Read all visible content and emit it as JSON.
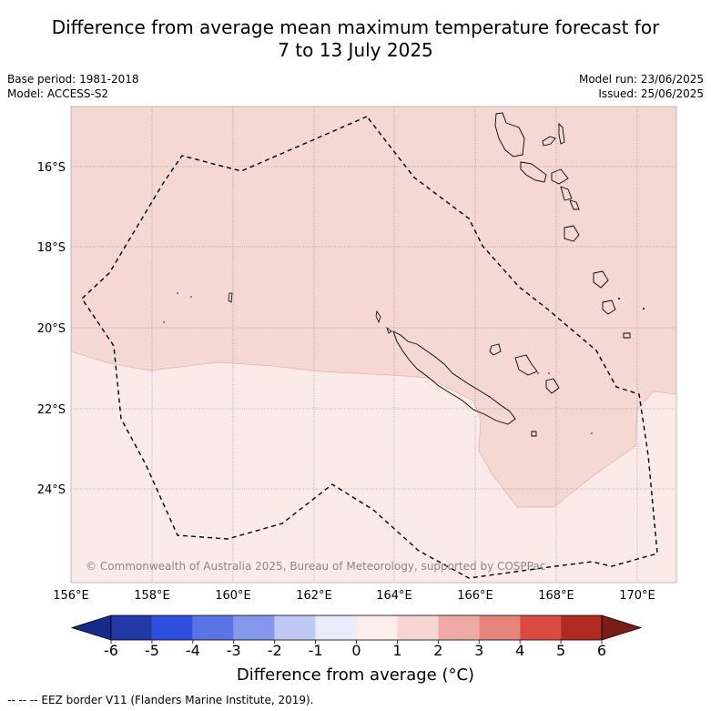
{
  "title": {
    "line1": "Difference from average mean maximum temperature forecast for",
    "line2": "7 to 13 July 2025"
  },
  "meta": {
    "base_period": "Base period: 1981-2018",
    "model": "Model: ACCESS-S2",
    "model_run": "Model run: 23/06/2025",
    "issued": "Issued: 25/06/2025"
  },
  "map": {
    "lon_ticks": [
      "156°E",
      "158°E",
      "160°E",
      "162°E",
      "164°E",
      "166°E",
      "168°E",
      "170°E"
    ],
    "lat_ticks": [
      "16°S",
      "18°S",
      "20°S",
      "22°S",
      "24°S"
    ],
    "copyright": "© Commonwealth of Australia 2025, Bureau of Meteorology, supported by COSPPac",
    "regions": [
      {
        "label": "0 to 1",
        "color": "#fbeae8"
      },
      {
        "label": "1 to 2",
        "color": "#f5d7d4"
      }
    ]
  },
  "colorbar": {
    "label": "Difference from average (°C)",
    "ticks": [
      "-6",
      "-5",
      "-4",
      "-3",
      "-2",
      "-1",
      "0",
      "1",
      "2",
      "3",
      "4",
      "5",
      "6"
    ],
    "colors": [
      "#2238a6",
      "#2e4fe0",
      "#5a74e6",
      "#8698ec",
      "#c0c9f5",
      "#e8ecfb",
      "#fdeeea",
      "#f6d5d2",
      "#efaaa5",
      "#e6847d",
      "#db4a3f",
      "#b02a22"
    ],
    "under_color": "#172a85",
    "over_color": "#7a1d18"
  },
  "footnote": "-- -- -- EEZ border V11 (Flanders Marine Institute, 2019)."
}
